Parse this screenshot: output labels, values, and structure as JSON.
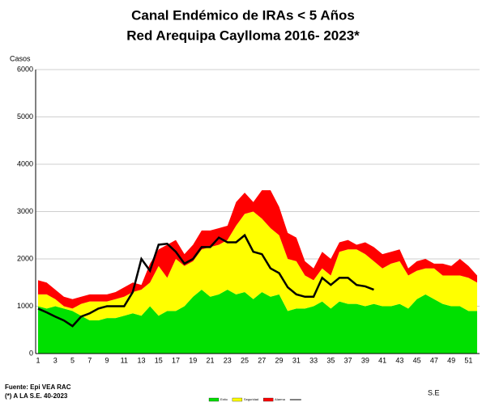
{
  "chart_data": {
    "type": "stacked_area",
    "title": "Canal Endémico de IRAs < 5 Años",
    "subtitle": "Red Arequipa Caylloma 2016- 2023*",
    "y_label": "Casos",
    "x_label": "S.E",
    "source": "Fuente: Epi VEA RAC",
    "note": "(*) A LA S.E. 40-2023",
    "categories": [
      "1",
      null,
      "3",
      null,
      "5",
      null,
      "7",
      null,
      "9",
      null,
      "11",
      null,
      "13",
      null,
      "15",
      null,
      "17",
      null,
      "19",
      null,
      "21",
      null,
      "23",
      null,
      "25",
      null,
      "27",
      null,
      "29",
      null,
      "31",
      null,
      "33",
      null,
      "35",
      null,
      "37",
      null,
      "39",
      null,
      "41",
      null,
      "43",
      null,
      "45",
      null,
      "47",
      null,
      "49",
      null,
      "51",
      null
    ],
    "ylim": [
      0,
      6000
    ],
    "yticks": [
      0,
      1000,
      2000,
      3000,
      4000,
      5000,
      6000
    ],
    "grid": true,
    "series": [
      {
        "name": "Exito",
        "color": "#00e000",
        "values": [
          1000,
          950,
          1000,
          950,
          900,
          800,
          700,
          700,
          750,
          750,
          800,
          850,
          800,
          1000,
          800,
          900,
          900,
          1000,
          1200,
          1350,
          1200,
          1250,
          1350,
          1250,
          1300,
          1150,
          1300,
          1200,
          1250,
          900,
          950,
          950,
          1000,
          1100,
          950,
          1100,
          1050,
          1050,
          1000,
          1050,
          1000,
          1000,
          1050,
          950,
          1150,
          1250,
          1150,
          1050,
          1000,
          1000,
          900,
          900
        ]
      },
      {
        "name": "Seguridad",
        "color": "#ffff00",
        "values": [
          250,
          300,
          150,
          50,
          50,
          250,
          400,
          400,
          350,
          400,
          400,
          450,
          550,
          500,
          1050,
          700,
          1100,
          850,
          750,
          850,
          1050,
          1050,
          1050,
          1450,
          1650,
          1850,
          1550,
          1450,
          1250,
          1100,
          1000,
          700,
          550,
          700,
          700,
          1050,
          1150,
          1150,
          1100,
          900,
          800,
          900,
          900,
          700,
          600,
          550,
          650,
          600,
          650,
          650,
          700,
          600
        ]
      },
      {
        "name": "Alarma",
        "color": "#ff0000",
        "values": [
          300,
          250,
          200,
          200,
          200,
          150,
          150,
          150,
          150,
          150,
          200,
          200,
          100,
          400,
          350,
          700,
          400,
          250,
          350,
          400,
          350,
          350,
          300,
          500,
          450,
          200,
          600,
          800,
          600,
          550,
          500,
          300,
          250,
          350,
          350,
          200,
          200,
          100,
          250,
          300,
          300,
          250,
          250,
          150,
          200,
          200,
          100,
          250,
          200,
          350,
          250,
          150
        ]
      },
      {
        "type": "line",
        "color": "#000000",
        "values": [
          950,
          870,
          780,
          700,
          580,
          780,
          850,
          950,
          1000,
          1000,
          1000,
          1300,
          2000,
          1750,
          2300,
          2320,
          2150,
          1900,
          2000,
          2250,
          2250,
          2450,
          2350,
          2350,
          2500,
          2150,
          2100,
          1800,
          1700,
          1400,
          1250,
          1200,
          1200,
          1600,
          1450,
          1600,
          1600,
          1450,
          1420,
          1350,
          null,
          null,
          null,
          null,
          null,
          null,
          null,
          null,
          null,
          null,
          null,
          null
        ]
      }
    ]
  }
}
